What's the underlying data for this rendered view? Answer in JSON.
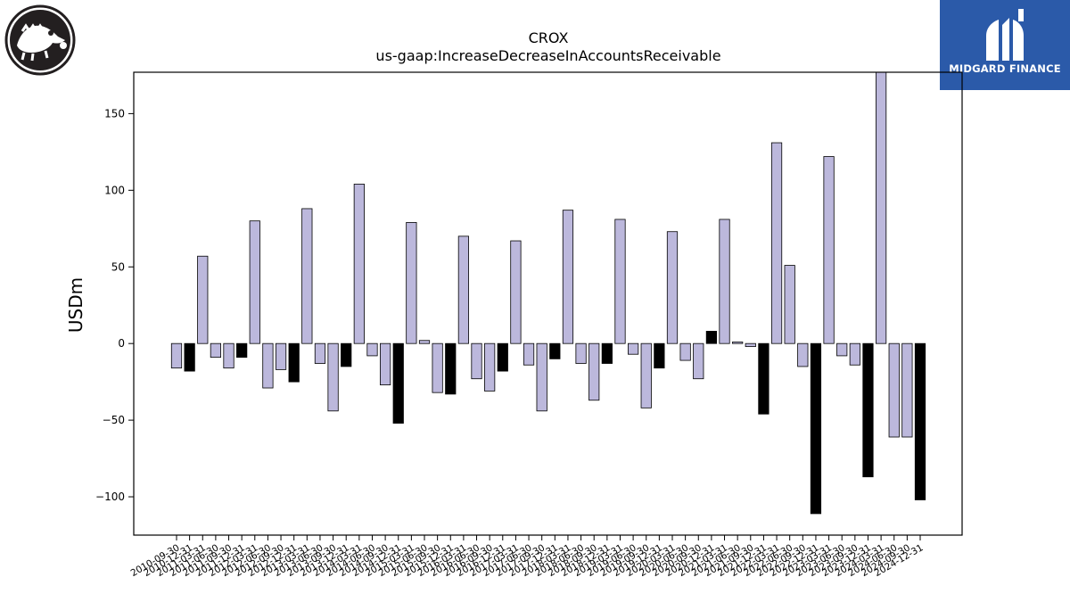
{
  "branding": {
    "left_logo_icon": "crocodile-logo-icon",
    "right_logo_icon": "midgard-finance-logo-icon",
    "right_logo_text": "MIDGARD FINANCE",
    "right_logo_bg": "#2b5aa9"
  },
  "chart_data": {
    "type": "bar",
    "title": "CROX",
    "subtitle": "us-gaap:IncreaseDecreaseInAccountsReceivable",
    "ylabel": "USDm",
    "xlabel": "",
    "ylim": [
      -125,
      177
    ],
    "yticks": [
      -100,
      -50,
      0,
      50,
      100,
      150
    ],
    "grid": false,
    "legend": "none",
    "colors": {
      "quarter": "#bcb8dc",
      "annual": "#000000",
      "edge": "#000000"
    },
    "categories": [
      "2010-09-30",
      "2010-12-31",
      "2011-03-31",
      "2011-06-30",
      "2011-09-30",
      "2011-12-31",
      "2012-03-31",
      "2012-06-30",
      "2012-09-30",
      "2012-12-31",
      "2013-03-31",
      "2013-06-30",
      "2013-09-30",
      "2013-12-31",
      "2014-03-31",
      "2014-06-30",
      "2014-09-30",
      "2014-12-31",
      "2015-03-31",
      "2015-06-30",
      "2015-09-30",
      "2015-12-31",
      "2016-03-31",
      "2016-06-30",
      "2016-09-30",
      "2016-12-31",
      "2017-03-31",
      "2017-06-30",
      "2017-09-30",
      "2017-12-31",
      "2018-03-31",
      "2018-06-30",
      "2018-09-30",
      "2018-12-31",
      "2019-03-31",
      "2019-06-30",
      "2019-09-30",
      "2019-12-31",
      "2020-03-31",
      "2020-06-30",
      "2020-09-30",
      "2020-12-31",
      "2021-03-31",
      "2021-06-30",
      "2021-09-30",
      "2021-12-31",
      "2022-03-31",
      "2022-06-30",
      "2022-09-30",
      "2022-12-31",
      "2023-03-31",
      "2023-06-30",
      "2023-09-30",
      "2023-12-31",
      "2024-03-31",
      "2024-06-30",
      "2024-09-30",
      "2024-12-31"
    ],
    "values": [
      -16,
      -18,
      57,
      -9,
      -16,
      -9,
      80,
      -29,
      -17,
      -25,
      88,
      -13,
      -44,
      -15,
      104,
      -8,
      -27,
      -52,
      79,
      2,
      -32,
      -33,
      70,
      -23,
      -31,
      -18,
      67,
      -14,
      -44,
      -10,
      87,
      -13,
      -37,
      -13,
      81,
      -7,
      -42,
      -16,
      73,
      -11,
      -23,
      8,
      81,
      1,
      -2,
      -46,
      131,
      51,
      -15,
      -111,
      122,
      -8,
      -14,
      -87,
      182,
      -61,
      -61,
      -102
    ],
    "annual_flags": [
      false,
      true,
      false,
      false,
      false,
      true,
      false,
      false,
      false,
      true,
      false,
      false,
      false,
      true,
      false,
      false,
      false,
      true,
      false,
      false,
      false,
      true,
      false,
      false,
      false,
      true,
      false,
      false,
      false,
      true,
      false,
      false,
      false,
      true,
      false,
      false,
      false,
      true,
      false,
      false,
      false,
      true,
      false,
      false,
      false,
      true,
      false,
      false,
      false,
      true,
      false,
      false,
      false,
      true,
      false,
      false,
      false,
      true
    ]
  }
}
